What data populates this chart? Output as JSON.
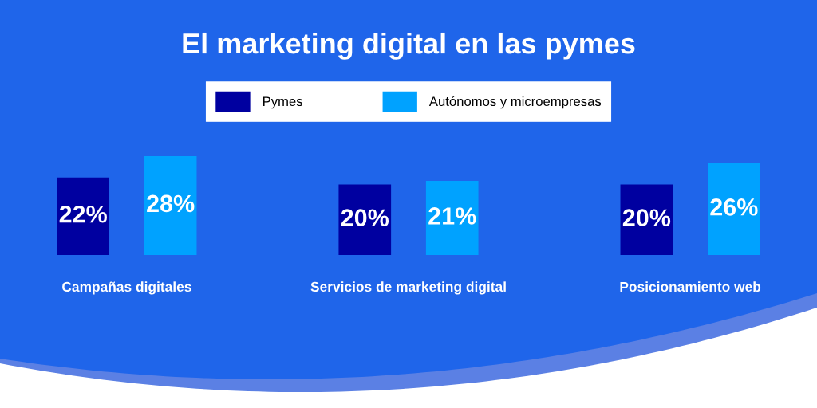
{
  "chart_data": {
    "type": "bar",
    "title": "El marketing digital en las pymes",
    "categories": [
      "Campañas digitales",
      "Servicios de marketing digital",
      "Posicionamiento web"
    ],
    "series": [
      {
        "name": "Pymes",
        "color": "#0000a0",
        "values": [
          22,
          20,
          20
        ],
        "value_labels": [
          "22%",
          "20%",
          "20%"
        ]
      },
      {
        "name": "Autónomos y microempresas",
        "color": "#00a2ff",
        "values": [
          28,
          21,
          26
        ],
        "value_labels": [
          "28%",
          "21%",
          "26%"
        ]
      }
    ],
    "legend": "top",
    "tick_labels": "x"
  }
}
